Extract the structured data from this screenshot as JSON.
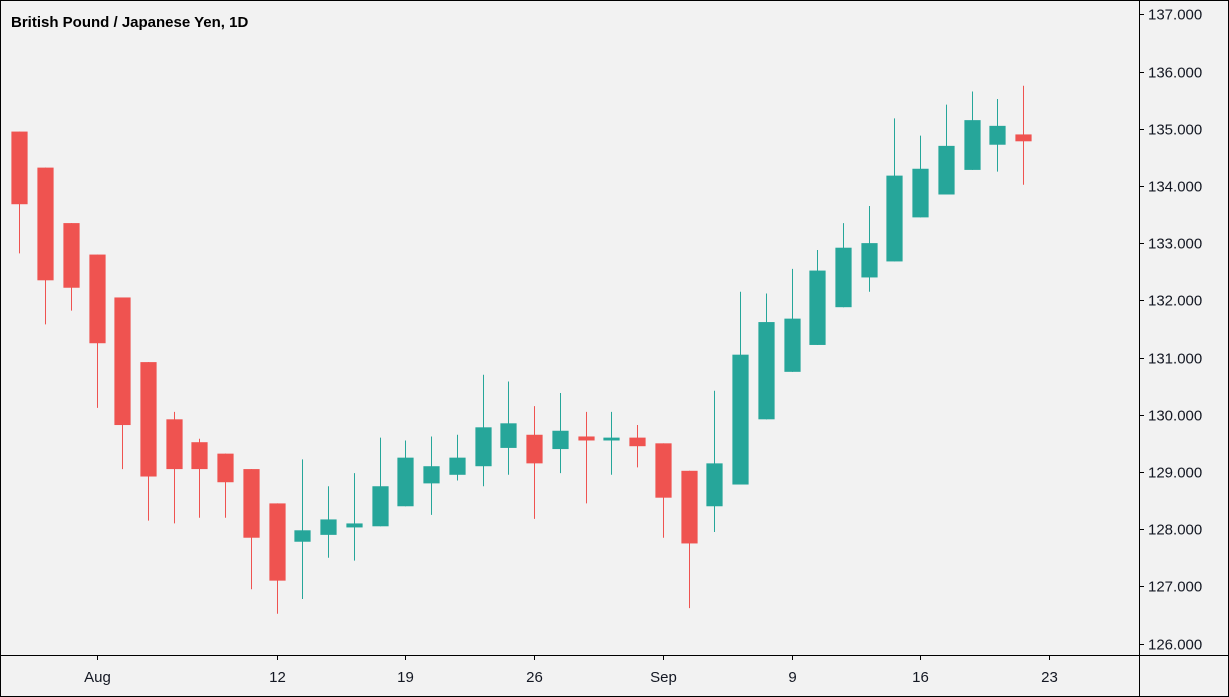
{
  "chart_data": {
    "type": "candlestick",
    "title": "British Pound / Japanese Yen, 1D",
    "ylim": [
      125.8,
      137.25
    ],
    "y_ticks": [
      "126.000",
      "127.000",
      "128.000",
      "129.000",
      "130.000",
      "131.000",
      "132.000",
      "133.000",
      "134.000",
      "135.000",
      "136.000",
      "137.000"
    ],
    "y_tick_values": [
      126,
      127,
      128,
      129,
      130,
      131,
      132,
      133,
      134,
      135,
      136,
      137
    ],
    "x_ticks": [
      {
        "label": "Aug",
        "index": 3
      },
      {
        "label": "12",
        "index": 10
      },
      {
        "label": "19",
        "index": 15
      },
      {
        "label": "26",
        "index": 20
      },
      {
        "label": "Sep",
        "index": 25
      },
      {
        "label": "9",
        "index": 30
      },
      {
        "label": "16",
        "index": 35
      },
      {
        "label": "23",
        "index": 40
      }
    ],
    "x_index_range": [
      -0.75,
      43.5
    ],
    "colors": {
      "up": "#26a69a",
      "down": "#ef5350",
      "background": "#f2f2f2",
      "axis": "#000000"
    },
    "candles": [
      {
        "o": 134.95,
        "h": 134.95,
        "l": 132.82,
        "c": 133.68
      },
      {
        "o": 134.32,
        "h": 134.32,
        "l": 131.58,
        "c": 132.35
      },
      {
        "o": 133.35,
        "h": 133.35,
        "l": 131.82,
        "c": 132.22
      },
      {
        "o": 132.8,
        "h": 132.8,
        "l": 130.12,
        "c": 131.25
      },
      {
        "o": 132.05,
        "h": 132.05,
        "l": 129.05,
        "c": 129.82
      },
      {
        "o": 130.92,
        "h": 130.92,
        "l": 128.15,
        "c": 128.92
      },
      {
        "o": 129.92,
        "h": 130.05,
        "l": 128.1,
        "c": 129.05
      },
      {
        "o": 129.52,
        "h": 129.58,
        "l": 128.2,
        "c": 129.05
      },
      {
        "o": 129.32,
        "h": 129.32,
        "l": 128.2,
        "c": 128.82
      },
      {
        "o": 129.05,
        "h": 129.05,
        "l": 126.95,
        "c": 127.85
      },
      {
        "o": 128.45,
        "h": 128.45,
        "l": 126.52,
        "c": 127.1
      },
      {
        "o": 127.78,
        "h": 129.22,
        "l": 126.78,
        "c": 127.98
      },
      {
        "o": 127.9,
        "h": 128.75,
        "l": 127.5,
        "c": 128.17
      },
      {
        "o": 128.03,
        "h": 128.98,
        "l": 127.45,
        "c": 128.1
      },
      {
        "o": 128.05,
        "h": 129.6,
        "l": 128.05,
        "c": 128.75
      },
      {
        "o": 128.4,
        "h": 129.55,
        "l": 128.4,
        "c": 129.25
      },
      {
        "o": 128.8,
        "h": 129.62,
        "l": 128.25,
        "c": 129.1
      },
      {
        "o": 128.95,
        "h": 129.65,
        "l": 128.85,
        "c": 129.25
      },
      {
        "o": 129.1,
        "h": 130.7,
        "l": 128.75,
        "c": 129.78
      },
      {
        "o": 129.42,
        "h": 130.58,
        "l": 128.95,
        "c": 129.85
      },
      {
        "o": 129.65,
        "h": 130.15,
        "l": 128.18,
        "c": 129.15
      },
      {
        "o": 129.4,
        "h": 130.38,
        "l": 128.98,
        "c": 129.72
      },
      {
        "o": 129.62,
        "h": 130.05,
        "l": 128.45,
        "c": 129.55
      },
      {
        "o": 129.55,
        "h": 130.05,
        "l": 128.95,
        "c": 129.6
      },
      {
        "o": 129.6,
        "h": 129.82,
        "l": 129.08,
        "c": 129.45
      },
      {
        "o": 129.5,
        "h": 129.5,
        "l": 127.85,
        "c": 128.55
      },
      {
        "o": 129.02,
        "h": 129.02,
        "l": 126.62,
        "c": 127.75
      },
      {
        "o": 128.4,
        "h": 130.42,
        "l": 127.95,
        "c": 129.15
      },
      {
        "o": 128.78,
        "h": 132.15,
        "l": 128.78,
        "c": 131.05
      },
      {
        "o": 129.92,
        "h": 132.12,
        "l": 129.92,
        "c": 131.62
      },
      {
        "o": 130.75,
        "h": 132.55,
        "l": 130.75,
        "c": 131.68
      },
      {
        "o": 131.22,
        "h": 132.88,
        "l": 131.22,
        "c": 132.52
      },
      {
        "o": 131.88,
        "h": 133.35,
        "l": 131.88,
        "c": 132.92
      },
      {
        "o": 132.4,
        "h": 133.65,
        "l": 132.15,
        "c": 133.0
      },
      {
        "o": 132.68,
        "h": 135.18,
        "l": 132.68,
        "c": 134.18
      },
      {
        "o": 133.45,
        "h": 134.88,
        "l": 133.45,
        "c": 134.3
      },
      {
        "o": 133.85,
        "h": 135.42,
        "l": 133.85,
        "c": 134.7
      },
      {
        "o": 134.28,
        "h": 135.65,
        "l": 134.28,
        "c": 135.15
      },
      {
        "o": 134.72,
        "h": 135.52,
        "l": 134.25,
        "c": 135.05
      },
      {
        "o": 134.9,
        "h": 135.75,
        "l": 134.02,
        "c": 134.78
      }
    ]
  }
}
